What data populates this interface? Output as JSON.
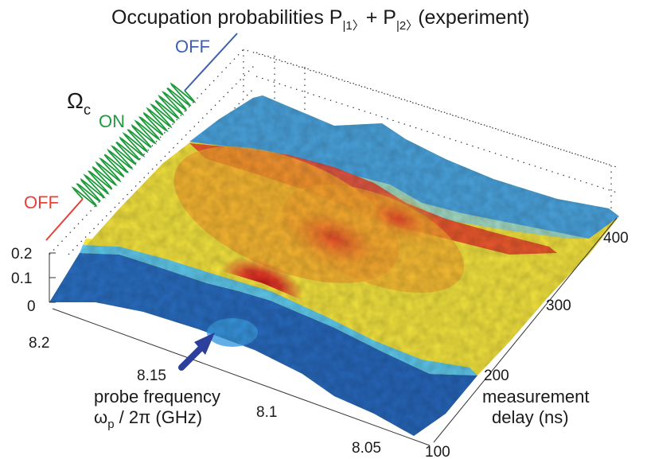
{
  "chart_data": {
    "type": "surface",
    "title": {
      "main": "Occupation probabilities P",
      "sub1": "|1〉",
      "plus": "+ P",
      "sub2": "|2〉",
      "suffix": "(experiment)"
    },
    "x_axis": {
      "label_line1": "probe frequency",
      "label_line2_symbol": "ω",
      "label_line2_sub": "p",
      "label_line2_rest": " / 2π (GHz)",
      "ticks": [
        "8.2",
        "8.15",
        "8.1",
        "8.05"
      ],
      "range": [
        8.05,
        8.22
      ]
    },
    "y_axis": {
      "label_line1": "measurement",
      "label_line2": "delay (ns)",
      "ticks": [
        "100",
        "200",
        "300",
        "400"
      ],
      "range": [
        100,
        420
      ]
    },
    "z_axis": {
      "ticks": [
        "0",
        "0.1",
        "0.2"
      ],
      "range": [
        0,
        0.2
      ]
    },
    "control_pulse": {
      "symbol": "Ω",
      "symbol_sub": "c",
      "states": [
        "OFF",
        "ON",
        "OFF"
      ],
      "colors": {
        "off_before": "#e8403a",
        "on": "#1f9a3c",
        "off_after": "#3f5fb0"
      }
    },
    "colormap": [
      "#1e5fb4",
      "#3a9be0",
      "#5ec8ea",
      "#bfe06a",
      "#f4e43c",
      "#f6a72e",
      "#e8402a",
      "#c41a1a"
    ],
    "arrow_color": "#2b3f9b"
  }
}
